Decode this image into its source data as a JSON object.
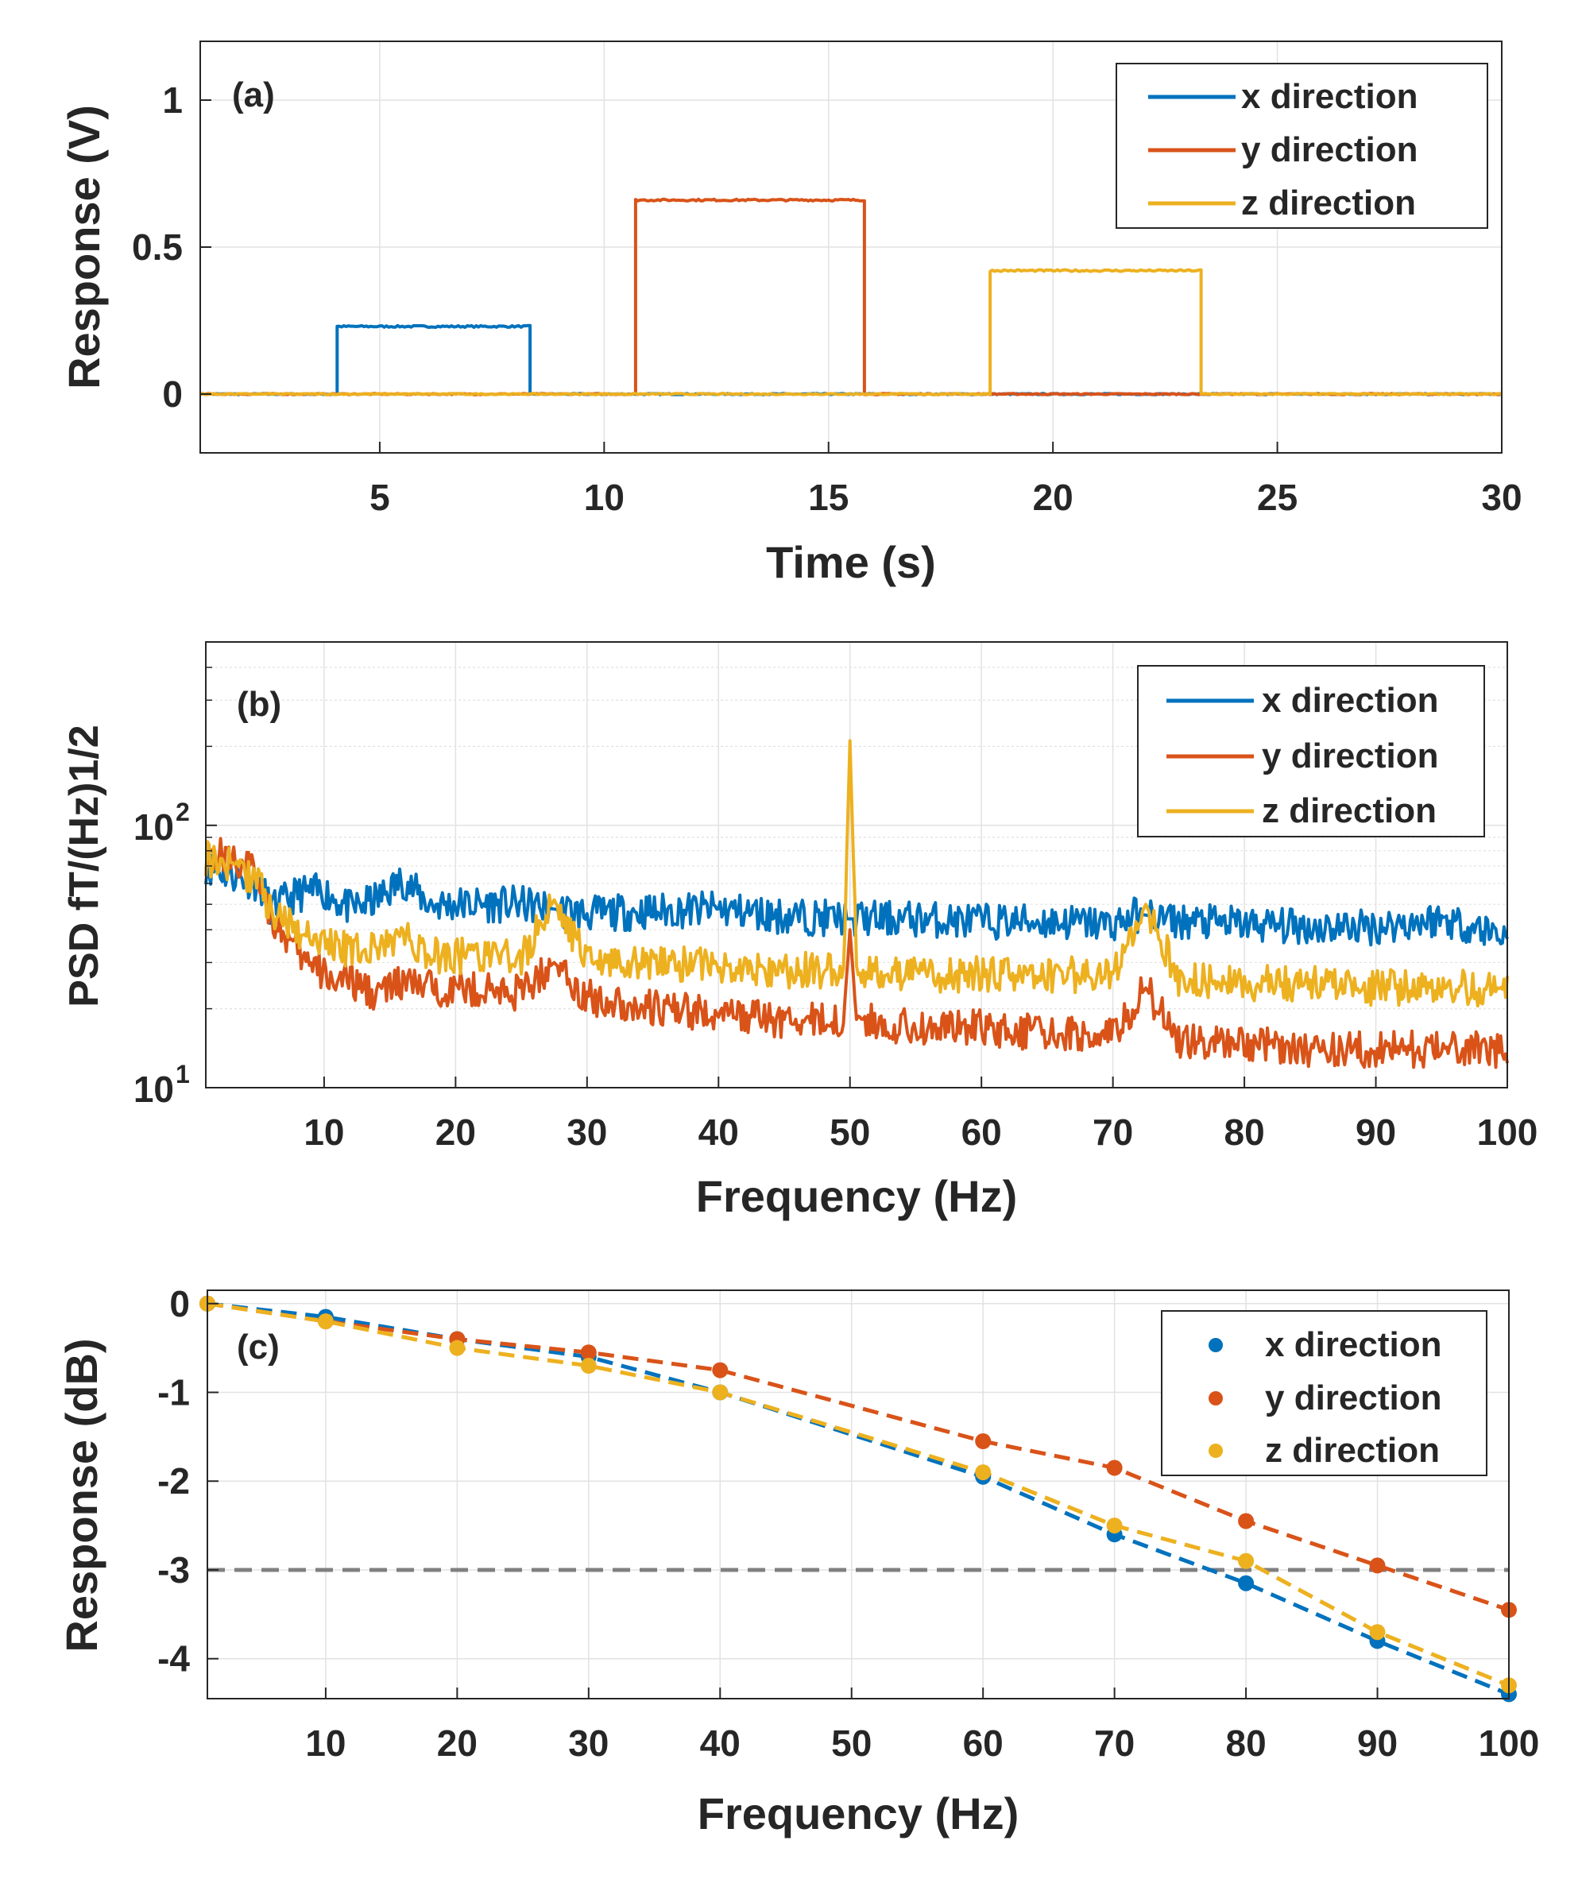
{
  "colors": {
    "x": "#0072BD",
    "y": "#D95319",
    "z": "#EDB120",
    "threshold": "#808080",
    "axis": "#262626",
    "grid": "#e2e2e2"
  },
  "chart_data": [
    {
      "type": "line",
      "panel_label": "(a)",
      "xlabel": "Time (s)",
      "ylabel": "Response (V)",
      "xlim": [
        1,
        30
      ],
      "ylim": [
        -0.2,
        1.2
      ],
      "xticks": [
        5,
        10,
        15,
        20,
        25,
        30
      ],
      "yticks": [
        0,
        0.5,
        1
      ],
      "ytick_labels": [
        "0",
        "0.5",
        "1"
      ],
      "legend_position": "top-right",
      "series": [
        {
          "name": "x direction",
          "color_key": "x",
          "pulse": {
            "start": 4.0,
            "end": 8.3,
            "level": 0.23
          }
        },
        {
          "name": "y direction",
          "color_key": "y",
          "pulse": {
            "start": 10.7,
            "end": 15.8,
            "level": 0.66
          }
        },
        {
          "name": "z direction",
          "color_key": "z",
          "pulse": {
            "start": 18.6,
            "end": 23.3,
            "level": 0.42
          }
        }
      ]
    },
    {
      "type": "line",
      "panel_label": "(b)",
      "xlabel": "Frequency (Hz)",
      "ylabel": "PSD fT/(Hz)1/2",
      "yscale": "log",
      "xlim": [
        1,
        100
      ],
      "ylim": [
        10,
        500
      ],
      "xticks": [
        10,
        20,
        30,
        40,
        50,
        60,
        70,
        80,
        90,
        100
      ],
      "ytick_labels": [
        {
          "base": "10",
          "exp": "1",
          "value": 10
        },
        {
          "base": "10",
          "exp": "2",
          "value": 100
        }
      ],
      "legend_position": "top-right",
      "series": [
        {
          "name": "x direction",
          "color_key": "x",
          "x": [
            1,
            3,
            5,
            6,
            8,
            10,
            12,
            14,
            16,
            18,
            20,
            25,
            30,
            35,
            40,
            45,
            50,
            55,
            60,
            65,
            70,
            72,
            75,
            80,
            85,
            90,
            95,
            100
          ],
          "y": [
            70,
            65,
            60,
            48,
            55,
            56,
            48,
            52,
            62,
            50,
            50,
            50,
            46,
            47,
            48,
            45,
            44,
            44,
            43,
            43,
            42,
            46,
            43,
            42,
            41,
            41,
            44,
            38
          ]
        },
        {
          "name": "y direction",
          "color_key": "y",
          "x": [
            1,
            3,
            5,
            6,
            8,
            10,
            12,
            14,
            16,
            18,
            20,
            25,
            27.5,
            30,
            35,
            40,
            45,
            49.5,
            50,
            50.5,
            55,
            60,
            65,
            70,
            72.5,
            75,
            80,
            85,
            90,
            95,
            100
          ],
          "y": [
            80,
            75,
            65,
            45,
            32,
            27,
            25,
            23,
            25,
            24,
            24,
            23,
            30,
            22,
            20,
            19,
            18,
            18,
            40,
            18,
            17,
            17,
            16,
            16,
            24,
            15,
            15,
            14,
            14,
            14,
            14
          ]
        },
        {
          "name": "z direction",
          "color_key": "z",
          "x": [
            1,
            3,
            5,
            6,
            8,
            10,
            12,
            14,
            16,
            18,
            20,
            25,
            27.5,
            30,
            35,
            40,
            45,
            49.5,
            50,
            50.5,
            55,
            60,
            65,
            70,
            72.5,
            75,
            80,
            85,
            90,
            95,
            100
          ],
          "y": [
            75,
            70,
            62,
            46,
            40,
            36,
            33,
            34,
            38,
            32,
            32,
            31,
            52,
            30,
            30,
            29,
            28,
            28,
            210,
            28,
            27,
            27,
            27,
            27,
            50,
            26,
            25,
            25,
            24,
            24,
            24
          ]
        }
      ]
    },
    {
      "type": "scatter",
      "panel_label": "(c)",
      "xlabel": "Frequency (Hz)",
      "ylabel": "Response (dB)",
      "xlim": [
        1,
        100
      ],
      "ylim": [
        -4.45,
        0.15
      ],
      "xticks": [
        10,
        20,
        30,
        40,
        50,
        60,
        70,
        80,
        90,
        100
      ],
      "yticks": [
        0,
        -1,
        -2,
        -3,
        -4
      ],
      "ytick_labels": [
        "0",
        "-1",
        "-2",
        "-3",
        "-4"
      ],
      "threshold": -3,
      "legend_position": "top-right",
      "series": [
        {
          "name": "x direction",
          "color_key": "x",
          "x": [
            1,
            10,
            20,
            30,
            40,
            60,
            70,
            80,
            90,
            100
          ],
          "y": [
            0,
            -0.15,
            -0.4,
            -0.6,
            -1.0,
            -1.95,
            -2.6,
            -3.15,
            -3.8,
            -4.4
          ]
        },
        {
          "name": "y direction",
          "color_key": "y",
          "x": [
            1,
            10,
            20,
            30,
            40,
            60,
            70,
            80,
            90,
            100
          ],
          "y": [
            0,
            -0.2,
            -0.4,
            -0.55,
            -0.75,
            -1.55,
            -1.85,
            -2.45,
            -2.95,
            -3.45
          ]
        },
        {
          "name": "z direction",
          "color_key": "z",
          "x": [
            1,
            10,
            20,
            30,
            40,
            60,
            70,
            80,
            90,
            100
          ],
          "y": [
            0,
            -0.2,
            -0.5,
            -0.7,
            -1.0,
            -1.9,
            -2.5,
            -2.9,
            -3.7,
            -4.3
          ]
        }
      ]
    }
  ]
}
